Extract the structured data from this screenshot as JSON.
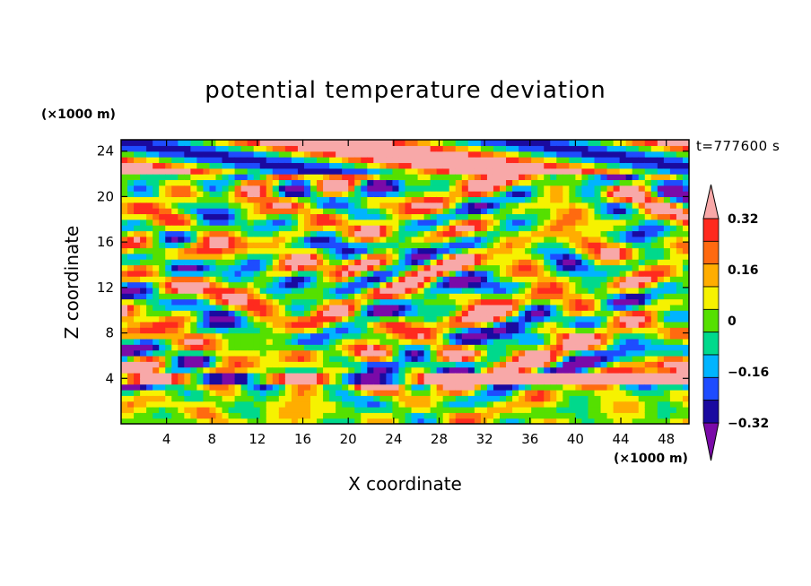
{
  "chart_data": {
    "type": "heatmap",
    "title": "potential temperature deviation",
    "xlabel": "X coordinate",
    "ylabel": "Z coordinate",
    "x_unit": "(×1000 m)",
    "y_unit": "(×1000 m)",
    "time_label": "t=777600 s",
    "xlim": [
      0,
      50
    ],
    "ylim": [
      0,
      25
    ],
    "x_ticks": [
      4,
      8,
      12,
      16,
      20,
      24,
      28,
      32,
      36,
      40,
      44,
      48
    ],
    "y_ticks": [
      4,
      8,
      12,
      16,
      20,
      24
    ],
    "colorbar": {
      "levels": [
        -0.4,
        -0.32,
        -0.24,
        -0.16,
        -0.08,
        0,
        0.08,
        0.16,
        0.24,
        0.32,
        0.4
      ],
      "tick_labels": [
        "0.32",
        "0.16",
        "0",
        "−0.16",
        "−0.32"
      ],
      "tick_values": [
        0.32,
        0.16,
        0,
        -0.16,
        -0.32
      ],
      "colors": [
        "#7a0aa8",
        "#1a0aa0",
        "#1e4cff",
        "#00b4ff",
        "#00d98c",
        "#55e000",
        "#f6f200",
        "#ffad00",
        "#ff6a10",
        "#ff2a1e",
        "#f8a8a8"
      ],
      "extend": "both"
    }
  }
}
